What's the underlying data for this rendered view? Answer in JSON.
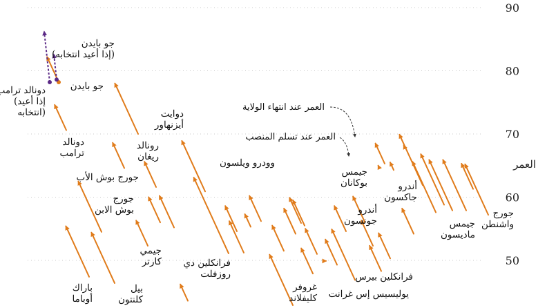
{
  "chart_data": {
    "type": "arrow-range",
    "title": "",
    "ylabel": "العمر",
    "ylim": [
      40,
      90
    ],
    "yticks": [
      50,
      60,
      70,
      80,
      90
    ],
    "grid": true,
    "colors": {
      "term": "#e07b1a",
      "reelection": "#5b2a86",
      "text": "#111111"
    },
    "presidents": [
      {
        "start": 57.2,
        "end": 65.2
      },
      {
        "start": 61.3,
        "end": 65.3
      },
      {
        "start": 57.9,
        "end": 65.9
      },
      {
        "start": 57.9,
        "end": 65.9
      },
      {
        "start": 58.8,
        "end": 66.8
      },
      {
        "start": 57.6,
        "end": 65.6
      },
      {
        "start": 61.9,
        "end": 69.9
      },
      {
        "start": 54.2,
        "end": 58.2
      },
      {
        "start": 68.1,
        "end": 68.2
      },
      {
        "start": 64.3,
        "end": 65.5
      },
      {
        "start": 50.3,
        "end": 54.3
      },
      {
        "start": 65.3,
        "end": 68.5
      },
      {
        "start": 48.3,
        "end": 52.3
      },
      {
        "start": 64.9,
        "end": 65.0
      },
      {
        "start": 52.3,
        "end": 56.3
      },
      {
        "start": 56.1,
        "end": 60.1
      },
      {
        "start": 46.9,
        "end": 54.9
      },
      {
        "start": 54.6,
        "end": 58.6
      },
      {
        "start": 49.3,
        "end": 53.3
      },
      {
        "start": 49.9,
        "end": 49.9
      },
      {
        "start": 51.0,
        "end": 55.0
      },
      {
        "start": 47.9,
        "end": 51.9
      },
      {
        "start": 55.5,
        "end": 59.5
      },
      {
        "start": 55.9,
        "end": 59.9
      },
      {
        "start": 54.2,
        "end": 58.2
      },
      {
        "start": 42.9,
        "end": 50.9
      },
      {
        "start": 51.5,
        "end": 55.5
      },
      {
        "start": 56.2,
        "end": 60.2
      },
      {
        "start": 55.3,
        "end": 57.3
      },
      {
        "start": 51.2,
        "end": 56.2
      },
      {
        "start": 54.6,
        "end": 58.6
      },
      {
        "start": 51.1,
        "end": 63.1
      },
      {
        "start": 60.9,
        "end": 68.9
      },
      {
        "start": 43.6,
        "end": 46.2
      },
      {
        "start": 55.2,
        "end": 60.2
      },
      {
        "start": 56.0,
        "end": 60.0
      },
      {
        "start": 61.6,
        "end": 65.6
      },
      {
        "start": 52.3,
        "end": 56.3
      },
      {
        "start": 70.0,
        "end": 78.0
      },
      {
        "start": 64.6,
        "end": 68.6
      },
      {
        "start": 46.4,
        "end": 54.4
      },
      {
        "start": 54.5,
        "end": 62.5
      },
      {
        "start": 47.4,
        "end": 55.4
      },
      {
        "start": 70.6,
        "end": 74.6
      },
      {
        "start": 78.2,
        "end": 82.2
      }
    ],
    "reelection": [
      {
        "start": 78.2,
        "end": 86.2
      },
      {
        "start": 78.6,
        "end": 82.6
      }
    ],
    "labels": [
      {
        "id": "washington",
        "lines": [
          "جورج",
          "واشنطن"
        ],
        "president": 0
      },
      {
        "id": "madison",
        "lines": [
          "جيمس",
          "ماديسون"
        ],
        "president": 3
      },
      {
        "id": "jackson",
        "lines": [
          "أندرو",
          "جاكسون"
        ],
        "president": 6
      },
      {
        "id": "pierce",
        "lines": [
          "فرانكلين بيرس"
        ],
        "president": 13
      },
      {
        "id": "buchanan",
        "lines": [
          "جيمس",
          "بوكانان"
        ],
        "president": 14
      },
      {
        "id": "johnson",
        "lines": [
          "أندرو",
          "جونسون"
        ],
        "president": 16
      },
      {
        "id": "grant",
        "lines": [
          "يوليسيس إس غرانت"
        ],
        "president": 17
      },
      {
        "id": "cleveland",
        "lines": [
          "غروفر",
          "كليفلاند"
        ],
        "president": 21
      },
      {
        "id": "wilson",
        "lines": [
          "وودرو ويلسون"
        ],
        "president": 27
      },
      {
        "id": "fdr",
        "lines": [
          "فرانكلين دي",
          "روزفلت"
        ],
        "president": 31
      },
      {
        "id": "eisenhower",
        "lines": [
          "دوايت",
          "أيزنهاور"
        ],
        "president": 32
      },
      {
        "id": "carter",
        "lines": [
          "جيمي",
          "كارتر"
        ],
        "president": 37
      },
      {
        "id": "reagan",
        "lines": [
          "رونالد",
          "ريغان"
        ],
        "president": 38
      },
      {
        "id": "bush41",
        "lines": [
          "جورج بوش الأب"
        ],
        "president": 39
      },
      {
        "id": "clinton",
        "lines": [
          "بيل",
          "كلنتون"
        ],
        "president": 40
      },
      {
        "id": "bush43",
        "lines": [
          "جورج",
          "بوش الابن"
        ],
        "president": 41
      },
      {
        "id": "obama",
        "lines": [
          "باراك",
          "أوباما"
        ],
        "president": 42
      },
      {
        "id": "trump",
        "lines": [
          "دونالد",
          "ترامب"
        ],
        "president": 43
      },
      {
        "id": "biden",
        "lines": [
          "جو بايدن"
        ],
        "president": 44
      },
      {
        "id": "trump-re",
        "lines": [
          "دونالد ترامب",
          "(إذا أعيد",
          "انتخابه)"
        ],
        "reelection": 1
      },
      {
        "id": "biden-re",
        "lines": [
          "جو بايدن",
          "(إذا أعيد انتخابه)"
        ],
        "reelection": 0
      }
    ],
    "annotations": {
      "end_age": "العمر عند انتهاء الولاية",
      "start_age": "العمر عند تسلم المنصب"
    }
  }
}
